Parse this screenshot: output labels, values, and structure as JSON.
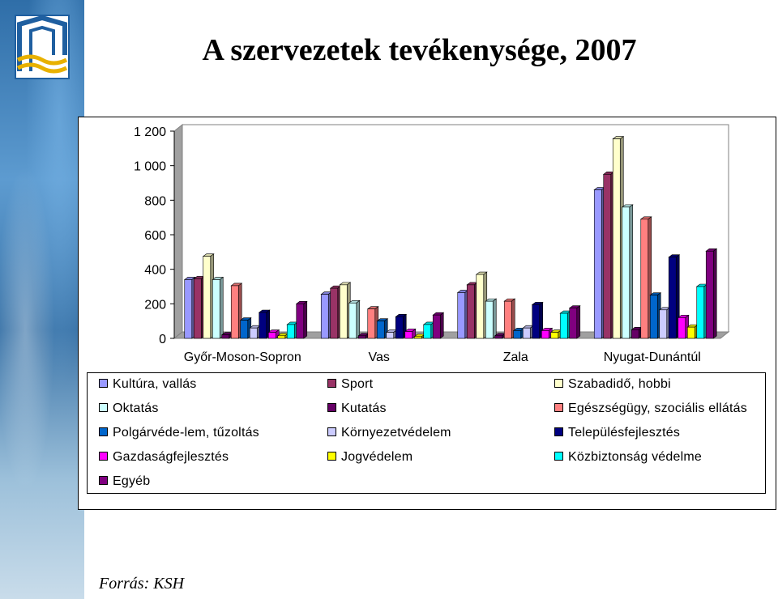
{
  "title": "A szervezetek tevékenysége, 2007",
  "source": "Forrás: KSH",
  "chart_data": {
    "type": "bar",
    "categories": [
      "Győr-Moson-Sopron",
      "Vas",
      "Zala",
      "Nyugat-Dunántúl"
    ],
    "yticks": [
      "0",
      "200",
      "400",
      "600",
      "800",
      "1 000",
      "1 200"
    ],
    "ylim": [
      0,
      1200
    ],
    "legend_position": "bottom",
    "series": [
      {
        "name": "Kultúra, vallás",
        "color": "#9999FF",
        "values": [
          340,
          255,
          265,
          860
        ]
      },
      {
        "name": "Sport",
        "color": "#993366",
        "values": [
          345,
          290,
          310,
          950
        ]
      },
      {
        "name": "Szabadidő, hobbi",
        "color": "#FFFFCC",
        "values": [
          475,
          310,
          370,
          1155
        ]
      },
      {
        "name": "Oktatás",
        "color": "#CCFFFF",
        "values": [
          340,
          205,
          215,
          760
        ]
      },
      {
        "name": "Kutatás",
        "color": "#660066",
        "values": [
          20,
          15,
          15,
          50
        ]
      },
      {
        "name": "Egészségügy, szociális ellátás",
        "color": "#FF8080",
        "values": [
          305,
          170,
          215,
          690
        ]
      },
      {
        "name": "Polgárvéde-lem, tűzoltás",
        "color": "#0066CC",
        "values": [
          105,
          100,
          45,
          250
        ]
      },
      {
        "name": "Környezetvédelem",
        "color": "#CCCCFF",
        "values": [
          60,
          35,
          60,
          165
        ]
      },
      {
        "name": "Településfejlesztés",
        "color": "#000080",
        "values": [
          150,
          125,
          195,
          470
        ]
      },
      {
        "name": "Gazdaságfejlesztés",
        "color": "#FF00FF",
        "values": [
          35,
          40,
          45,
          120
        ]
      },
      {
        "name": "Jogvédelem",
        "color": "#FFFF00",
        "values": [
          15,
          10,
          35,
          65
        ]
      },
      {
        "name": "Közbiztonság védelme",
        "color": "#00FFFF",
        "values": [
          80,
          80,
          145,
          300
        ]
      },
      {
        "name": "Egyéb",
        "color": "#800080",
        "values": [
          200,
          135,
          175,
          505
        ]
      }
    ]
  }
}
